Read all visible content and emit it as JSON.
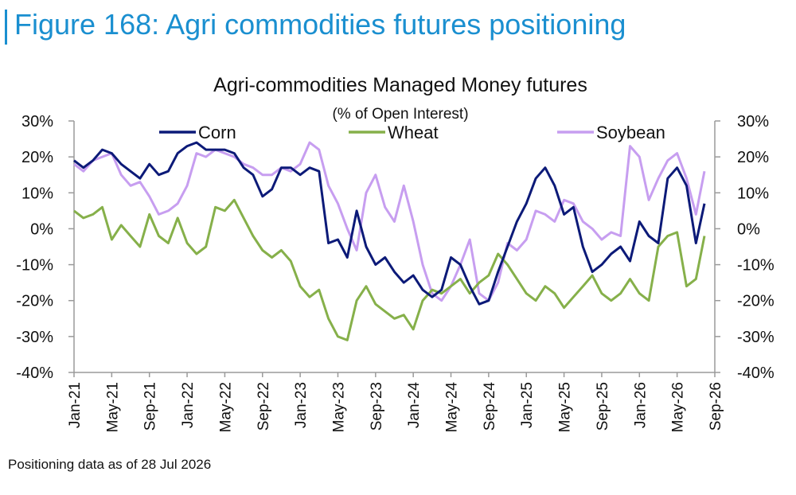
{
  "figure_title": "Figure 168: Agri commodities futures positioning",
  "footnote": "Positioning data as of 28 Jul 2026",
  "chart_data": {
    "type": "line",
    "title": "Agri-commodities Managed Money futures",
    "subtitle": "(% of Open Interest)",
    "ylim": [
      -40,
      30
    ],
    "y_ticks": [
      30,
      20,
      10,
      0,
      -10,
      -20,
      -30,
      -40
    ],
    "y_tick_labels": [
      "30%",
      "20%",
      "10%",
      "0%",
      "-10%",
      "-20%",
      "-30%",
      "-40%"
    ],
    "x_range": [
      "2021-01",
      "2026-09"
    ],
    "x_ticks": [
      "2021-01",
      "2021-05",
      "2021-09",
      "2022-01",
      "2022-05",
      "2022-09",
      "2023-01",
      "2023-05",
      "2023-09",
      "2024-01",
      "2024-05",
      "2024-09",
      "2025-01",
      "2025-05",
      "2025-09",
      "2026-01",
      "2026-05",
      "2026-09"
    ],
    "x_tick_labels": [
      "Jan-21",
      "May-21",
      "Sep-21",
      "Jan-22",
      "May-22",
      "Sep-22",
      "Jan-23",
      "May-23",
      "Sep-23",
      "Jan-24",
      "May-24",
      "Sep-24",
      "Jan-25",
      "May-25",
      "Sep-25",
      "Jan-26",
      "May-26",
      "Sep-26"
    ],
    "legend_position": "top",
    "grid": false,
    "series": [
      {
        "name": "Corn",
        "color": "#0c1a78",
        "points": [
          [
            "2021-01",
            19
          ],
          [
            "2021-02",
            17
          ],
          [
            "2021-03",
            19
          ],
          [
            "2021-04",
            22
          ],
          [
            "2021-05",
            21
          ],
          [
            "2021-06",
            18
          ],
          [
            "2021-07",
            16
          ],
          [
            "2021-08",
            14
          ],
          [
            "2021-09",
            18
          ],
          [
            "2021-10",
            15
          ],
          [
            "2021-11",
            16
          ],
          [
            "2021-12",
            21
          ],
          [
            "2022-01",
            23
          ],
          [
            "2022-02",
            24
          ],
          [
            "2022-03",
            22
          ],
          [
            "2022-04",
            22
          ],
          [
            "2022-05",
            22
          ],
          [
            "2022-06",
            21
          ],
          [
            "2022-07",
            17
          ],
          [
            "2022-08",
            15
          ],
          [
            "2022-09",
            9
          ],
          [
            "2022-10",
            11
          ],
          [
            "2022-11",
            17
          ],
          [
            "2022-12",
            17
          ],
          [
            "2023-01",
            15
          ],
          [
            "2023-02",
            17
          ],
          [
            "2023-03",
            16
          ],
          [
            "2023-04",
            -4
          ],
          [
            "2023-05",
            -3
          ],
          [
            "2023-06",
            -8
          ],
          [
            "2023-07",
            5
          ],
          [
            "2023-08",
            -5
          ],
          [
            "2023-09",
            -10
          ],
          [
            "2023-10",
            -8
          ],
          [
            "2023-11",
            -12
          ],
          [
            "2023-12",
            -15
          ],
          [
            "2024-01",
            -13
          ],
          [
            "2024-02",
            -17
          ],
          [
            "2024-03",
            -19
          ],
          [
            "2024-04",
            -17
          ],
          [
            "2024-05",
            -8
          ],
          [
            "2024-06",
            -10
          ],
          [
            "2024-07",
            -16
          ],
          [
            "2024-08",
            -21
          ],
          [
            "2024-09",
            -20
          ],
          [
            "2024-10",
            -12
          ],
          [
            "2024-11",
            -5
          ],
          [
            "2024-12",
            2
          ],
          [
            "2025-01",
            7
          ],
          [
            "2025-02",
            14
          ],
          [
            "2025-03",
            17
          ],
          [
            "2025-04",
            12
          ],
          [
            "2025-05",
            4
          ],
          [
            "2025-06",
            6
          ],
          [
            "2025-07",
            -5
          ],
          [
            "2025-08",
            -12
          ],
          [
            "2025-09",
            -10
          ],
          [
            "2025-10",
            -7
          ],
          [
            "2025-11",
            -5
          ],
          [
            "2025-12",
            -9
          ],
          [
            "2026-01",
            2
          ],
          [
            "2026-02",
            -2
          ],
          [
            "2026-03",
            -4
          ],
          [
            "2026-04",
            14
          ],
          [
            "2026-05",
            17
          ],
          [
            "2026-06",
            12
          ],
          [
            "2026-07",
            -4
          ],
          [
            "2026-07-28",
            7
          ]
        ]
      },
      {
        "name": "Wheat",
        "color": "#86b04a",
        "points": [
          [
            "2021-01",
            5
          ],
          [
            "2021-02",
            3
          ],
          [
            "2021-03",
            4
          ],
          [
            "2021-04",
            6
          ],
          [
            "2021-05",
            -3
          ],
          [
            "2021-06",
            1
          ],
          [
            "2021-07",
            -2
          ],
          [
            "2021-08",
            -5
          ],
          [
            "2021-09",
            4
          ],
          [
            "2021-10",
            -2
          ],
          [
            "2021-11",
            -4
          ],
          [
            "2021-12",
            3
          ],
          [
            "2022-01",
            -4
          ],
          [
            "2022-02",
            -7
          ],
          [
            "2022-03",
            -5
          ],
          [
            "2022-04",
            6
          ],
          [
            "2022-05",
            5
          ],
          [
            "2022-06",
            8
          ],
          [
            "2022-07",
            3
          ],
          [
            "2022-08",
            -2
          ],
          [
            "2022-09",
            -6
          ],
          [
            "2022-10",
            -8
          ],
          [
            "2022-11",
            -6
          ],
          [
            "2022-12",
            -9
          ],
          [
            "2023-01",
            -16
          ],
          [
            "2023-02",
            -19
          ],
          [
            "2023-03",
            -17
          ],
          [
            "2023-04",
            -25
          ],
          [
            "2023-05",
            -30
          ],
          [
            "2023-06",
            -31
          ],
          [
            "2023-07",
            -20
          ],
          [
            "2023-08",
            -16
          ],
          [
            "2023-09",
            -21
          ],
          [
            "2023-10",
            -23
          ],
          [
            "2023-11",
            -25
          ],
          [
            "2023-12",
            -24
          ],
          [
            "2024-01",
            -28
          ],
          [
            "2024-02",
            -20
          ],
          [
            "2024-03",
            -17
          ],
          [
            "2024-04",
            -18
          ],
          [
            "2024-05",
            -16
          ],
          [
            "2024-06",
            -14
          ],
          [
            "2024-07",
            -18
          ],
          [
            "2024-08",
            -15
          ],
          [
            "2024-09",
            -13
          ],
          [
            "2024-10",
            -7
          ],
          [
            "2024-11",
            -10
          ],
          [
            "2024-12",
            -14
          ],
          [
            "2025-01",
            -18
          ],
          [
            "2025-02",
            -20
          ],
          [
            "2025-03",
            -16
          ],
          [
            "2025-04",
            -18
          ],
          [
            "2025-05",
            -22
          ],
          [
            "2025-06",
            -19
          ],
          [
            "2025-07",
            -16
          ],
          [
            "2025-08",
            -13
          ],
          [
            "2025-09",
            -18
          ],
          [
            "2025-10",
            -20
          ],
          [
            "2025-11",
            -18
          ],
          [
            "2025-12",
            -14
          ],
          [
            "2026-01",
            -18
          ],
          [
            "2026-02",
            -20
          ],
          [
            "2026-03",
            -5
          ],
          [
            "2026-04",
            -2
          ],
          [
            "2026-05",
            -1
          ],
          [
            "2026-06",
            -16
          ],
          [
            "2026-07",
            -14
          ],
          [
            "2026-07-28",
            -2
          ]
        ]
      },
      {
        "name": "Soybean",
        "color": "#c79ef0",
        "points": [
          [
            "2021-01",
            18
          ],
          [
            "2021-02",
            16
          ],
          [
            "2021-03",
            19
          ],
          [
            "2021-04",
            20
          ],
          [
            "2021-05",
            21
          ],
          [
            "2021-06",
            15
          ],
          [
            "2021-07",
            12
          ],
          [
            "2021-08",
            13
          ],
          [
            "2021-09",
            9
          ],
          [
            "2021-10",
            4
          ],
          [
            "2021-11",
            5
          ],
          [
            "2021-12",
            7
          ],
          [
            "2022-01",
            12
          ],
          [
            "2022-02",
            21
          ],
          [
            "2022-03",
            20
          ],
          [
            "2022-04",
            22
          ],
          [
            "2022-05",
            21
          ],
          [
            "2022-06",
            20
          ],
          [
            "2022-07",
            18
          ],
          [
            "2022-08",
            17
          ],
          [
            "2022-09",
            15
          ],
          [
            "2022-10",
            15
          ],
          [
            "2022-11",
            17
          ],
          [
            "2022-12",
            16
          ],
          [
            "2023-01",
            18
          ],
          [
            "2023-02",
            24
          ],
          [
            "2023-03",
            22
          ],
          [
            "2023-04",
            12
          ],
          [
            "2023-05",
            7
          ],
          [
            "2023-06",
            0
          ],
          [
            "2023-07",
            -6
          ],
          [
            "2023-08",
            10
          ],
          [
            "2023-09",
            15
          ],
          [
            "2023-10",
            6
          ],
          [
            "2023-11",
            2
          ],
          [
            "2023-12",
            12
          ],
          [
            "2024-01",
            2
          ],
          [
            "2024-02",
            -10
          ],
          [
            "2024-03",
            -18
          ],
          [
            "2024-04",
            -20
          ],
          [
            "2024-05",
            -16
          ],
          [
            "2024-06",
            -10
          ],
          [
            "2024-07",
            -3
          ],
          [
            "2024-08",
            -18
          ],
          [
            "2024-09",
            -20
          ],
          [
            "2024-10",
            -15
          ],
          [
            "2024-11",
            -4
          ],
          [
            "2024-12",
            -6
          ],
          [
            "2025-01",
            -3
          ],
          [
            "2025-02",
            5
          ],
          [
            "2025-03",
            4
          ],
          [
            "2025-04",
            2
          ],
          [
            "2025-05",
            8
          ],
          [
            "2025-06",
            7
          ],
          [
            "2025-07",
            2
          ],
          [
            "2025-08",
            0
          ],
          [
            "2025-09",
            -3
          ],
          [
            "2025-10",
            -1
          ],
          [
            "2025-11",
            -2
          ],
          [
            "2025-12",
            23
          ],
          [
            "2026-01",
            20
          ],
          [
            "2026-02",
            8
          ],
          [
            "2026-03",
            14
          ],
          [
            "2026-04",
            19
          ],
          [
            "2026-05",
            21
          ],
          [
            "2026-06",
            14
          ],
          [
            "2026-07",
            4
          ],
          [
            "2026-07-28",
            16
          ]
        ]
      }
    ]
  }
}
